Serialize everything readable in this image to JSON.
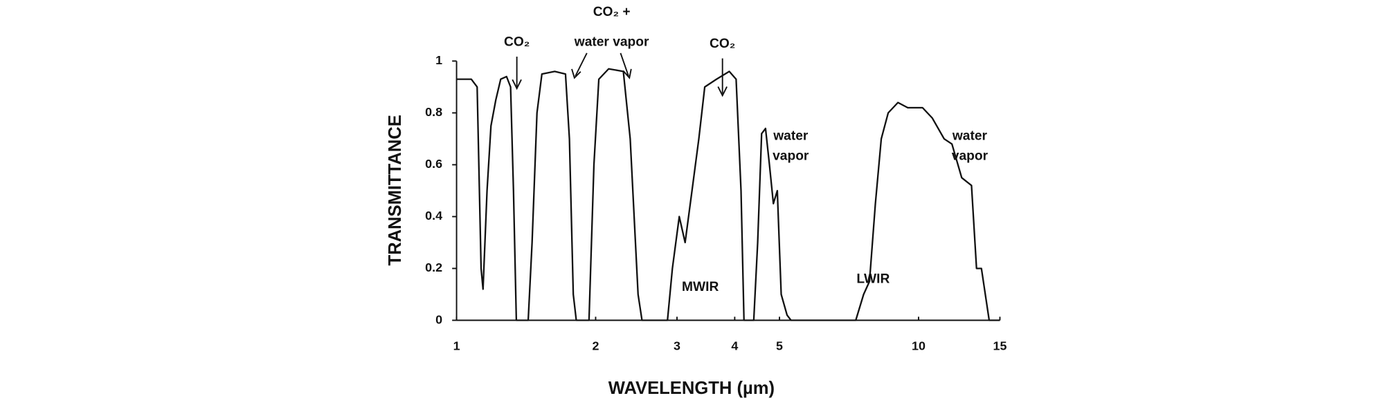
{
  "chart_data": {
    "type": "line",
    "xlabel": "WAVELENGTH (µm)",
    "ylabel": "TRANSMITTANCE",
    "x": [
      1.0,
      1.076,
      1.108,
      1.13,
      1.141,
      1.164,
      1.187,
      1.216,
      1.246,
      1.283,
      1.309,
      1.328,
      1.347,
      1.429,
      1.457,
      1.493,
      1.53,
      1.631,
      1.721,
      1.755,
      1.789,
      1.816,
      1.935,
      1.983,
      2.032,
      2.134,
      2.296,
      2.376,
      2.471,
      2.52,
      2.861,
      2.932,
      3.034,
      3.124,
      3.233,
      3.345,
      3.445,
      3.653,
      3.893,
      4.028,
      4.128,
      4.189,
      4.398,
      4.485,
      4.574,
      4.664,
      4.756,
      4.85,
      4.946,
      5.043,
      5.193,
      5.297,
      7.313,
      7.605,
      7.831,
      8.064,
      8.304,
      8.596,
      9.024,
      9.476,
      10.2,
      10.71,
      11.36,
      11.81,
      12.4,
      13.02,
      13.35,
      13.68,
      14.22,
      15
    ],
    "series": [
      {
        "color": "#111111",
        "values": [
          0.93,
          0.93,
          0.9,
          0.2,
          0.12,
          0.5,
          0.75,
          0.85,
          0.93,
          0.94,
          0.9,
          0.5,
          0,
          0,
          0.3,
          0.8,
          0.95,
          0.96,
          0.95,
          0.7,
          0.1,
          0,
          0,
          0.6,
          0.93,
          0.97,
          0.96,
          0.7,
          0.1,
          0,
          0,
          0.2,
          0.4,
          0.3,
          0.5,
          0.7,
          0.9,
          0.93,
          0.96,
          0.93,
          0.5,
          0,
          0,
          0.3,
          0.72,
          0.74,
          0.6,
          0.45,
          0.5,
          0.1,
          0.02,
          0,
          0,
          0.1,
          0.15,
          0.45,
          0.7,
          0.8,
          0.84,
          0.82,
          0.82,
          0.78,
          0.7,
          0.68,
          0.55,
          0.52,
          0.2,
          0.2,
          0,
          0
        ]
      }
    ],
    "xlim": [
      1,
      15
    ],
    "xticks": [
      1,
      2,
      3,
      4,
      5,
      10,
      15
    ],
    "xscale": "log",
    "ylim": [
      0,
      1
    ],
    "yticks": [
      0,
      0.2,
      0.4,
      0.6,
      0.8,
      1
    ],
    "annotations": [
      [
        "CO₂"
      ],
      [
        "CO₂ +",
        "water vapor"
      ],
      [
        "CO₂"
      ],
      [
        "water",
        "vapor"
      ],
      [
        "water",
        "vapor"
      ],
      [
        "MWIR"
      ],
      [
        "LWIR"
      ]
    ]
  }
}
